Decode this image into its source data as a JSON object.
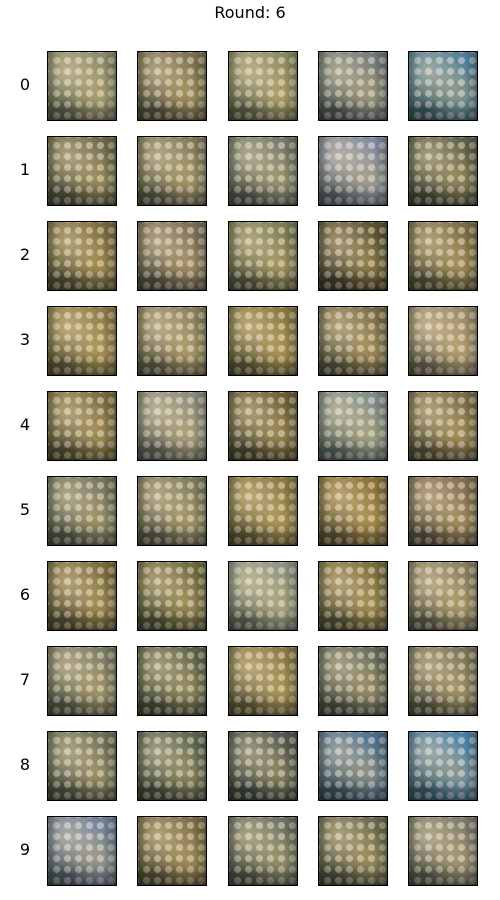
{
  "title": "Round: 6",
  "row_labels": [
    "0",
    "1",
    "2",
    "3",
    "4",
    "5",
    "6",
    "7",
    "8",
    "9"
  ],
  "grid": {
    "rows": 10,
    "cols": 5,
    "palettes": [
      [
        "#8a8a6a",
        "#7a7050",
        "#8c8a62",
        "#6f7a7a",
        "#4f7f9a"
      ],
      [
        "#6c6a4c",
        "#7f7a5a",
        "#72786a",
        "#7e8aa0",
        "#5f6148"
      ],
      [
        "#7a6a3c",
        "#7a6d58",
        "#7a7a52",
        "#5a5030",
        "#7a6c44"
      ],
      [
        "#8c7a44",
        "#8a805c",
        "#8a7840",
        "#7a6e48",
        "#9a8a6a"
      ],
      [
        "#7a6c40",
        "#8a8a7a",
        "#6a5f38",
        "#7c8c88",
        "#7a6c46"
      ],
      [
        "#72745e",
        "#7e7a5c",
        "#8a7840",
        "#8a7038",
        "#806c50"
      ],
      [
        "#7a6a3c",
        "#6f6a40",
        "#8c9480",
        "#7a6c3c",
        "#8a8060"
      ],
      [
        "#7a7a62",
        "#5f6448",
        "#8a7a44",
        "#646a5a",
        "#7a7458"
      ],
      [
        "#6c6f58",
        "#5a6450",
        "#505850",
        "#4a6e90",
        "#4a7fa8"
      ],
      [
        "#6c7f9a",
        "#7a6c44",
        "#6a7060",
        "#6c6a4c",
        "#7c7a6a"
      ]
    ]
  }
}
